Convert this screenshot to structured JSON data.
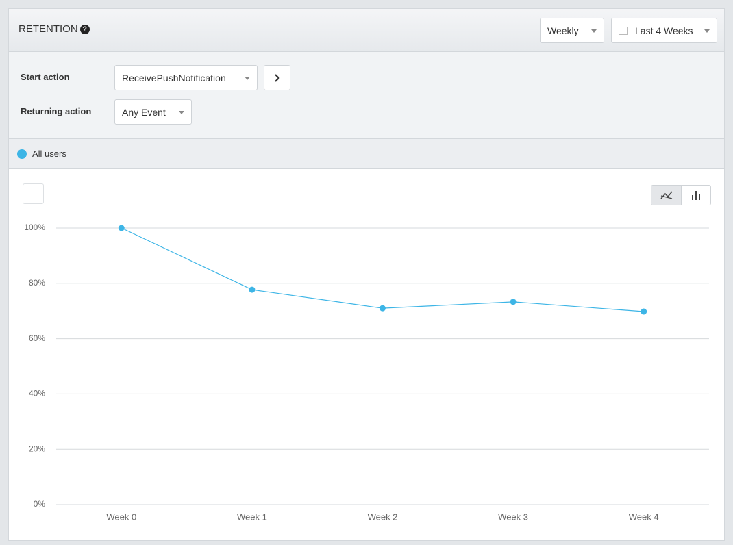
{
  "header": {
    "title": "RETENTION",
    "interval": "Weekly",
    "range": "Last 4 Weeks"
  },
  "controls": {
    "start_action_label": "Start action",
    "start_action": "ReceivePushNotification",
    "returning_action_label": "Returning action",
    "returning_action": "Any Event"
  },
  "chart_data": {
    "type": "line",
    "categories": [
      "Week 0",
      "Week 1",
      "Week 2",
      "Week 3",
      "Week 4"
    ],
    "series": [
      {
        "name": "All users",
        "color": "#3db5e6",
        "values": [
          100,
          77.7,
          71.0,
          73.3,
          69.8
        ]
      }
    ],
    "ylim": [
      0,
      100
    ],
    "yticks": [
      {
        "value": 0,
        "label": "0%"
      },
      {
        "value": 20,
        "label": "20%"
      },
      {
        "value": 40,
        "label": "40%"
      },
      {
        "value": 60,
        "label": "60%"
      },
      {
        "value": 80,
        "label": "80%"
      },
      {
        "value": 100,
        "label": "100%"
      }
    ],
    "grid": true
  }
}
